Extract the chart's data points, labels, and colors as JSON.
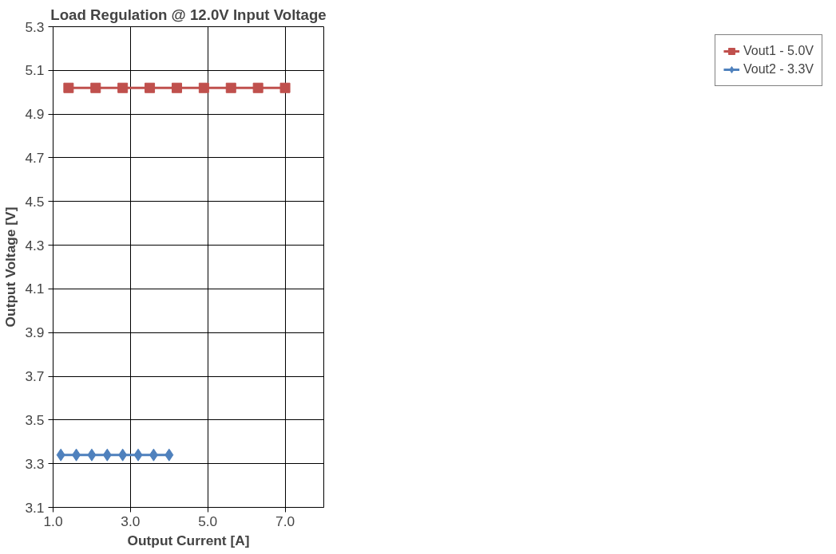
{
  "chart_data": {
    "type": "line",
    "title": "Load Regulation @ 12.0V Input Voltage",
    "xlabel": "Output Current [A]",
    "ylabel": "Output Voltage [V]",
    "xlim": [
      1,
      8
    ],
    "xticks": [
      {
        "value": 1,
        "label": "1.0"
      },
      {
        "value": 3,
        "label": "3.0"
      },
      {
        "value": 5,
        "label": "5.0"
      },
      {
        "value": 7,
        "label": "7.0"
      }
    ],
    "ylim": [
      3.1,
      5.3
    ],
    "yticks": [
      3.1,
      3.3,
      3.5,
      3.7,
      3.9,
      4.1,
      4.3,
      4.5,
      4.7,
      4.9,
      5.1,
      5.3
    ],
    "grid": true,
    "legend": "right",
    "line_style": "solid",
    "series": [
      {
        "name": "Vout1 - 5.0V",
        "color": "#c0504d",
        "marker": "square",
        "x": [
          1.4,
          2.1,
          2.8,
          3.5,
          4.2,
          4.9,
          5.6,
          6.3,
          7.0
        ],
        "values": [
          5.02,
          5.02,
          5.02,
          5.02,
          5.02,
          5.02,
          5.02,
          5.02,
          5.02
        ]
      },
      {
        "name": "Vout2 - 3.3V",
        "color": "#4f81bd",
        "marker": "diamond",
        "x": [
          1.2,
          1.6,
          2.0,
          2.4,
          2.8,
          3.2,
          3.6,
          4.0
        ],
        "values": [
          3.34,
          3.34,
          3.34,
          3.34,
          3.34,
          3.34,
          3.34,
          3.34
        ]
      }
    ]
  }
}
